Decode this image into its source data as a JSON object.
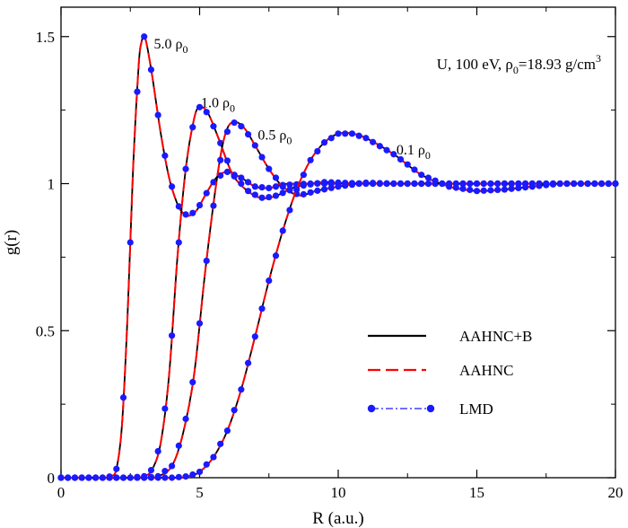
{
  "chart_data": {
    "type": "line",
    "xlabel": "R (a.u.)",
    "ylabel": "g(r)",
    "xlim": [
      0,
      20
    ],
    "ylim": [
      0,
      1.6
    ],
    "xticks": [
      0,
      5,
      10,
      15,
      20
    ],
    "xtick_labels": [
      "0",
      "5",
      "10",
      "15",
      "20"
    ],
    "yticks": [
      0,
      0.5,
      1,
      1.5
    ],
    "ytick_labels": [
      "0",
      "0.5",
      "1",
      "1.5"
    ],
    "grid": false,
    "legend_placement": "bottom-right",
    "legend": [
      {
        "label": "AAHNC+B",
        "style": "solid",
        "color": "#000000"
      },
      {
        "label": "AAHNC",
        "style": "dashed",
        "color": "#ff0000"
      },
      {
        "label": "LMD",
        "style": "dashdot-markers",
        "color": "#1a1aff"
      }
    ],
    "info_text": {
      "prefix": "U, 100 eV, ρ",
      "sub": "0",
      "middle": "=18.93 g/cm",
      "sup": "3"
    },
    "series": [
      {
        "density_label": {
          "value": "5.0 ρ",
          "sub": "0"
        },
        "points": [
          [
            0,
            0
          ],
          [
            1.0,
            0
          ],
          [
            1.6,
            0
          ],
          [
            1.8,
            0.005
          ],
          [
            2.0,
            0.03
          ],
          [
            2.2,
            0.18
          ],
          [
            2.4,
            0.55
          ],
          [
            2.6,
            1.05
          ],
          [
            2.8,
            1.4
          ],
          [
            2.9,
            1.48
          ],
          [
            3.0,
            1.5
          ],
          [
            3.1,
            1.47
          ],
          [
            3.3,
            1.36
          ],
          [
            3.6,
            1.17
          ],
          [
            3.9,
            1.02
          ],
          [
            4.2,
            0.93
          ],
          [
            4.4,
            0.9
          ],
          [
            4.6,
            0.89
          ],
          [
            4.9,
            0.91
          ],
          [
            5.2,
            0.96
          ],
          [
            5.6,
            1.02
          ],
          [
            6.0,
            1.04
          ],
          [
            6.5,
            1.02
          ],
          [
            7.0,
            0.99
          ],
          [
            7.5,
            0.985
          ],
          [
            8.0,
            0.995
          ],
          [
            9.0,
            1.0
          ],
          [
            20,
            1.0
          ]
        ]
      },
      {
        "density_label": {
          "value": "1.0 ρ",
          "sub": "0"
        },
        "points": [
          [
            0,
            0
          ],
          [
            2.5,
            0
          ],
          [
            3.0,
            0.005
          ],
          [
            3.3,
            0.03
          ],
          [
            3.6,
            0.12
          ],
          [
            3.9,
            0.35
          ],
          [
            4.2,
            0.75
          ],
          [
            4.5,
            1.05
          ],
          [
            4.8,
            1.22
          ],
          [
            5.0,
            1.26
          ],
          [
            5.3,
            1.24
          ],
          [
            5.7,
            1.15
          ],
          [
            6.2,
            1.03
          ],
          [
            6.8,
            0.97
          ],
          [
            7.3,
            0.95
          ],
          [
            7.8,
            0.96
          ],
          [
            8.5,
            0.99
          ],
          [
            9.5,
            1.005
          ],
          [
            11,
            1.0
          ],
          [
            20,
            1.0
          ]
        ]
      },
      {
        "density_label": {
          "value": "0.5 ρ",
          "sub": "0"
        },
        "points": [
          [
            0,
            0
          ],
          [
            3.0,
            0
          ],
          [
            3.5,
            0.005
          ],
          [
            4.0,
            0.04
          ],
          [
            4.4,
            0.15
          ],
          [
            4.8,
            0.35
          ],
          [
            5.2,
            0.7
          ],
          [
            5.6,
            1.0
          ],
          [
            5.9,
            1.16
          ],
          [
            6.2,
            1.21
          ],
          [
            6.6,
            1.19
          ],
          [
            7.0,
            1.13
          ],
          [
            7.5,
            1.05
          ],
          [
            8.0,
            0.99
          ],
          [
            8.6,
            0.96
          ],
          [
            9.2,
            0.975
          ],
          [
            10,
            0.99
          ],
          [
            11,
            1.003
          ],
          [
            12,
            1.0
          ],
          [
            20,
            1.0
          ]
        ]
      },
      {
        "density_label": {
          "value": "0.1 ρ",
          "sub": "0"
        },
        "points": [
          [
            0,
            0
          ],
          [
            4.0,
            0
          ],
          [
            4.6,
            0.005
          ],
          [
            5.0,
            0.02
          ],
          [
            5.5,
            0.07
          ],
          [
            6.0,
            0.16
          ],
          [
            6.5,
            0.3
          ],
          [
            7.0,
            0.48
          ],
          [
            7.5,
            0.67
          ],
          [
            8.0,
            0.84
          ],
          [
            8.5,
            0.98
          ],
          [
            9.0,
            1.08
          ],
          [
            9.5,
            1.14
          ],
          [
            10.0,
            1.17
          ],
          [
            10.5,
            1.17
          ],
          [
            11.0,
            1.155
          ],
          [
            12.0,
            1.1
          ],
          [
            13.0,
            1.03
          ],
          [
            14.0,
            0.99
          ],
          [
            15.0,
            0.975
          ],
          [
            16.0,
            0.98
          ],
          [
            17.0,
            0.99
          ],
          [
            18.0,
            1.0
          ],
          [
            20,
            1.0
          ]
        ]
      }
    ]
  }
}
